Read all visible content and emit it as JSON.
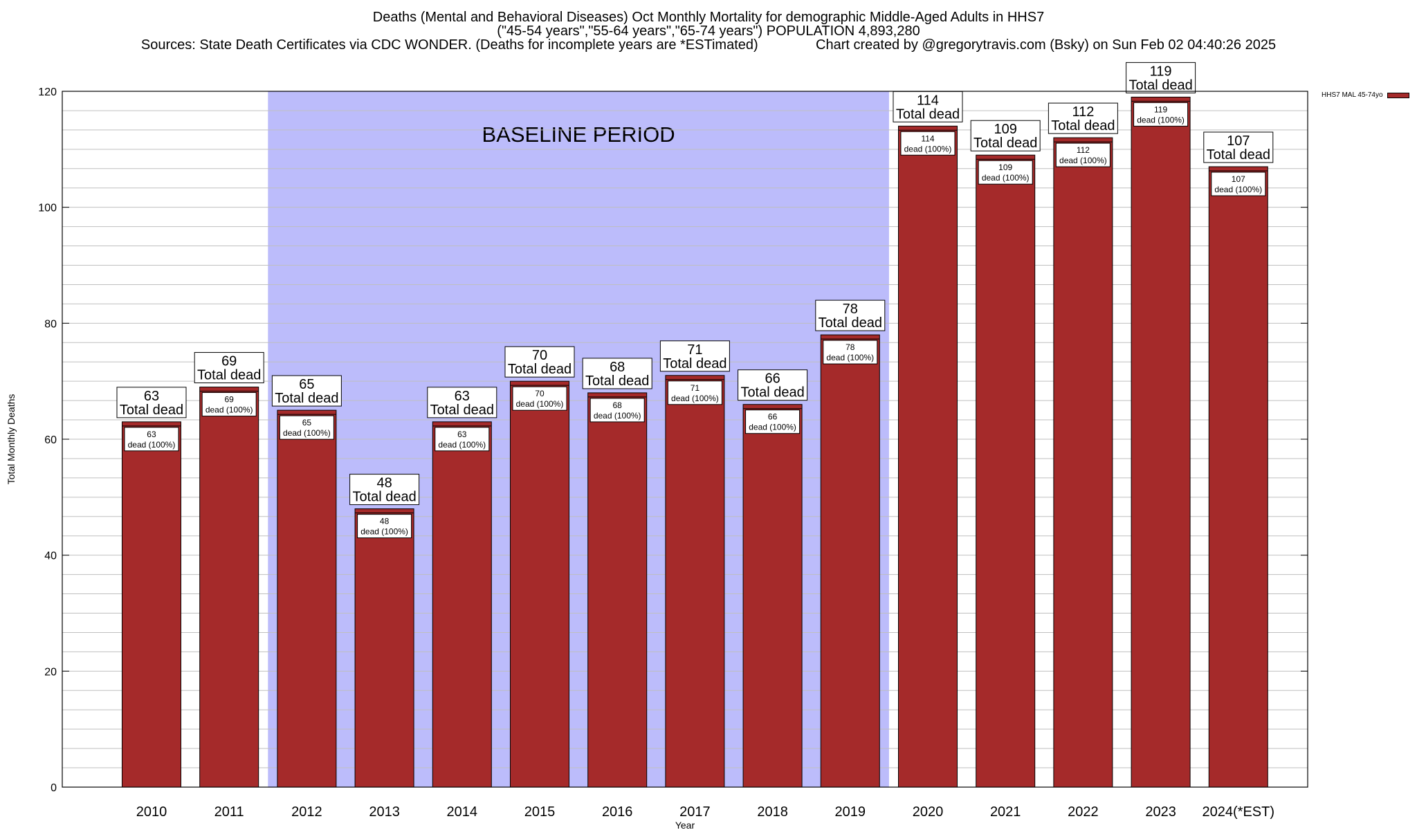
{
  "title_lines": [
    "Deaths (Mental and Behavioral Diseases) Oct Monthly Mortality for demographic Middle-Aged Adults in HHS7",
    "(\"45-54 years\",\"55-64 years\",\"65-74 years\") POPULATION 4,893,280",
    "Sources: State Death Certificates via CDC WONDER. (Deaths for incomplete years are *ESTimated)               Chart created by @gregorytravis.com (Bsky) on Sun Feb 02 04:40:26 2025"
  ],
  "colors": {
    "bar": "#a52a2a",
    "baseline_fill": "#bcbcfb",
    "grid": "#bfbfbf"
  },
  "chart_data": {
    "type": "bar",
    "xlabel": "Year",
    "ylabel": "Total Monthly Deaths",
    "ylim": [
      0,
      120
    ],
    "y_ticks": [
      0,
      20,
      40,
      60,
      80,
      100,
      120
    ],
    "grid": true,
    "legend_placement": "top-right",
    "categories": [
      "2010",
      "2011",
      "2012",
      "2013",
      "2014",
      "2015",
      "2016",
      "2017",
      "2018",
      "2019",
      "2020",
      "2021",
      "2022",
      "2023",
      "2024(*EST)"
    ],
    "series": [
      {
        "name": "HHS7 MAL 45-74yo",
        "values": [
          63,
          69,
          65,
          48,
          63,
          70,
          68,
          71,
          66,
          78,
          114,
          109,
          112,
          119,
          107
        ]
      }
    ],
    "top_label_suffix": "Total dead",
    "inner_label_suffix": "dead (100%)",
    "baseline_period": {
      "label": "BASELINE PERIOD",
      "start": "2012",
      "end": "2019"
    }
  }
}
